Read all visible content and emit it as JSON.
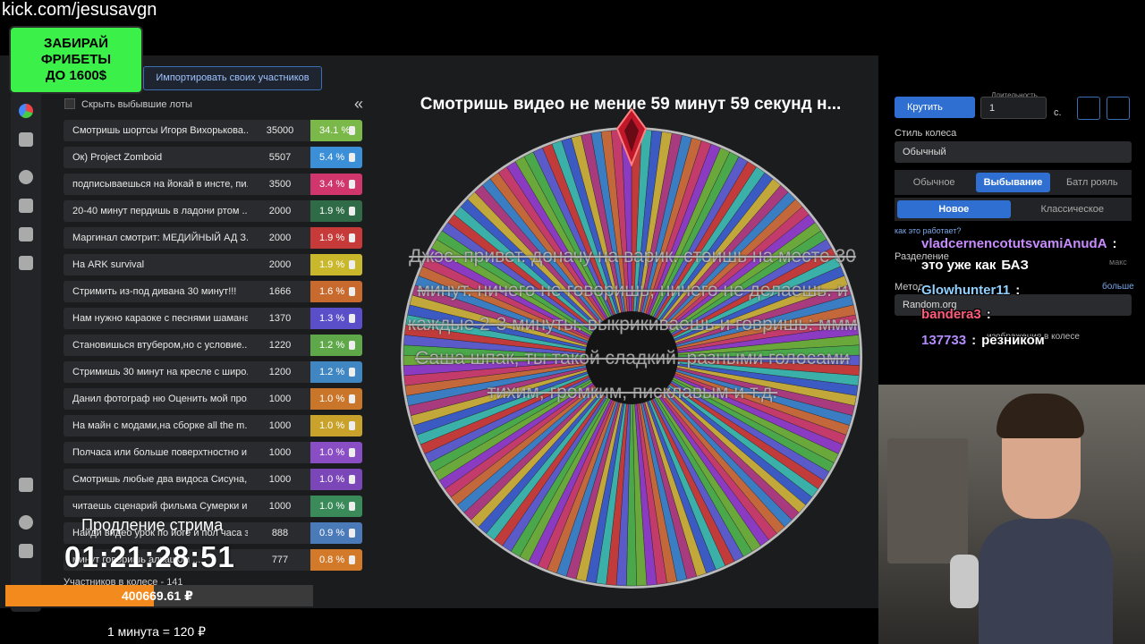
{
  "header": {
    "url": "kick.com/jesusavgn"
  },
  "promo": {
    "lines": [
      "ЗАБИРАЙ",
      "ФРИБЕТЫ",
      "ДО 1600$"
    ]
  },
  "toolbar": {
    "import_button": "Импортировать своих участников",
    "hide_eliminated": "Скрыть выбывшие лоты",
    "collapse": "«"
  },
  "lots": [
    {
      "name": "Смотришь шортсы Игоря Вихорькова...",
      "amount": 35000,
      "percent": "34.1 %"
    },
    {
      "name": "Ок) Project Zomboid",
      "amount": 5507,
      "percent": "5.4 %"
    },
    {
      "name": "подписываешься на йокай в инсте, пи...",
      "amount": 3500,
      "percent": "3.4 %"
    },
    {
      "name": "20-40 минут пердишь в ладони ртом ...",
      "amount": 2000,
      "percent": "1.9 %"
    },
    {
      "name": "Маргинал смотрит: МЕДИЙНЫЙ АД З...",
      "amount": 2000,
      "percent": "1.9 %"
    },
    {
      "name": "На ARK survival",
      "amount": 2000,
      "percent": "1.9 %"
    },
    {
      "name": "Стримить из-под дивана 30 минут!!!",
      "amount": 1666,
      "percent": "1.6 %"
    },
    {
      "name": "Нам нужно караоке с песнями шамана",
      "amount": 1370,
      "percent": "1.3 %"
    },
    {
      "name": "Становишься втубером,но с условие...",
      "amount": 1220,
      "percent": "1.2 %"
    },
    {
      "name": "Стримишь 30 минут на кресле с широ...",
      "amount": 1200,
      "percent": "1.2 %"
    },
    {
      "name": "Данил фотограф ню Оценить мой про...",
      "amount": 1000,
      "percent": "1.0 %"
    },
    {
      "name": "На майн с модами,на сборке all the m...",
      "amount": 1000,
      "percent": "1.0 %"
    },
    {
      "name": "Полчаса или больше поверхтностно и...",
      "amount": 1000,
      "percent": "1.0 %"
    },
    {
      "name": "Смотришь любые два видоса Сисуна,...",
      "amount": 1000,
      "percent": "1.0 %"
    },
    {
      "name": "читаешь сценарий фильма Сумерки и...",
      "amount": 1000,
      "percent": "1.0 %"
    },
    {
      "name": "Найди видео урок по йоге и пол часа з...",
      "amount": 888,
      "percent": "0.9 %"
    },
    {
      "name": "минут говоришь алкашом ...",
      "amount": 777,
      "percent": "0.8 %"
    }
  ],
  "overlay": {
    "extension_label": "Продление стрима",
    "timer": "01:21:28:51"
  },
  "footer": {
    "participants": "Участников в колесе - 141",
    "total": "400669.61 ₽",
    "rate": "1 минута = 120 ₽"
  },
  "wheel": {
    "title": "Смотришь видео не мение 59 минут 59 секунд н...",
    "donation_text": "Джэс. привет. доначу на варик. стоишь на месте 30 минут. ничего не говоришь, ничего не делаешь. и каждые 2-3 минуты. выкрикиваешь и говришь: ммм Саша шпак, ты такой сладкий. разными голосами тихим, громким, писклавым и т.д."
  },
  "settings": {
    "spin": "Крутить",
    "duration_label": "Длительность",
    "duration_value": "1",
    "duration_unit": "с.",
    "style_label": "Стиль колеса",
    "style_value": "Обычный",
    "modes": [
      "Обычное",
      "Выбывание",
      "Батл рояль"
    ],
    "submodes": [
      "Новое",
      "Классическое"
    ],
    "split_label": "Разделение",
    "split_max": "макс",
    "how_link": "как это работает?",
    "method_label": "Метод",
    "more": "больше",
    "method_value": "Random.org",
    "images_label": "изображения в колесе"
  },
  "chat": [
    {
      "user": "vladcernencotutsvamiAnudA",
      "separator": ":"
    },
    {
      "message": "это уже как",
      "extra": "БАЗ"
    },
    {
      "user": "Glowhunter11",
      "separator": ":"
    },
    {
      "user": "bandera3",
      "separator": ":"
    },
    {
      "user": "137733",
      "separator": ":",
      "message": "резником"
    }
  ]
}
